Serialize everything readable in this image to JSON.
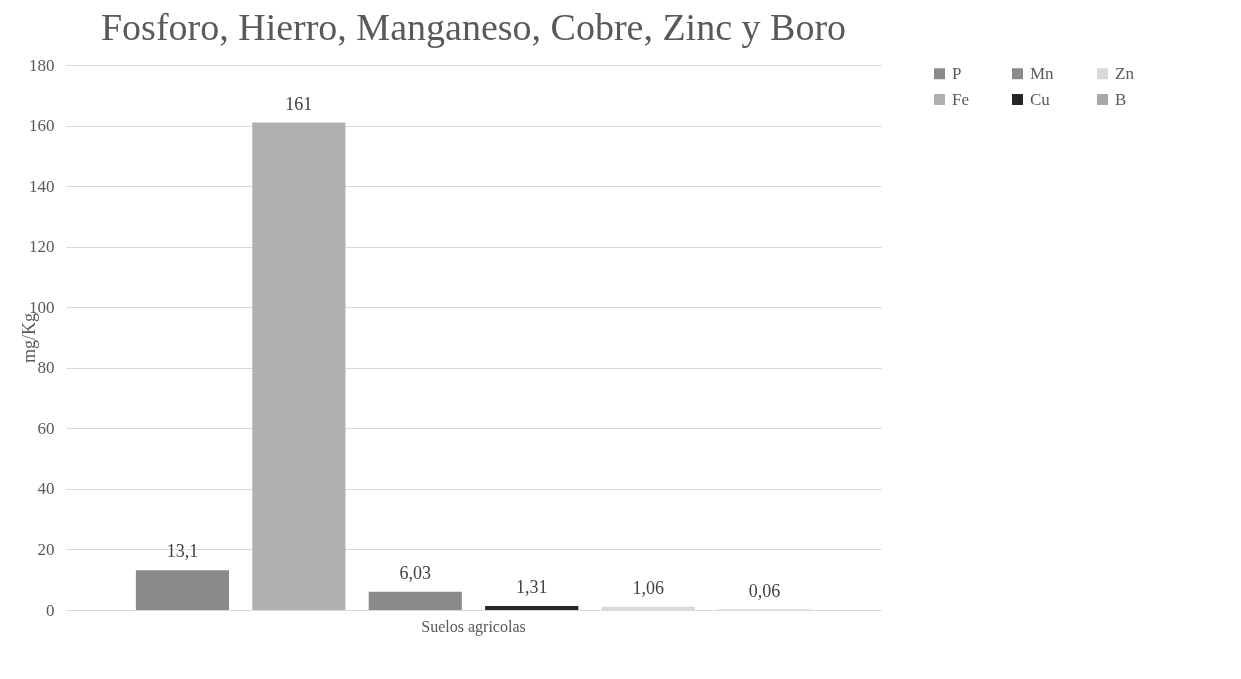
{
  "chart_data": {
    "type": "bar",
    "title": "Fosforo, Hierro, Manganeso, Cobre, Zinc y Boro",
    "ylabel": "mg/Kg",
    "categories": [
      "Suelos agricolas"
    ],
    "series": [
      {
        "name": "P",
        "color": "#8a8a8a",
        "values": [
          13.1
        ],
        "value_labels": [
          "13,1"
        ]
      },
      {
        "name": "Fe",
        "color": "#b0b0b0",
        "values": [
          161
        ],
        "value_labels": [
          "161"
        ]
      },
      {
        "name": "Mn",
        "color": "#8a8a8a",
        "values": [
          6.03
        ],
        "value_labels": [
          "6,03"
        ]
      },
      {
        "name": "Cu",
        "color": "#262626",
        "values": [
          1.31
        ],
        "value_labels": [
          "1,31"
        ]
      },
      {
        "name": "Zn",
        "color": "#d9d9d9",
        "values": [
          1.06
        ],
        "value_labels": [
          "1,06"
        ]
      },
      {
        "name": "B",
        "color": "#a8a8a8",
        "values": [
          0.06
        ],
        "value_labels": [
          "0,06"
        ]
      }
    ],
    "ylim": [
      0,
      180
    ],
    "yticks": [
      0,
      20,
      40,
      60,
      80,
      100,
      120,
      140,
      160,
      180
    ],
    "grid": "y",
    "legend": "right"
  }
}
